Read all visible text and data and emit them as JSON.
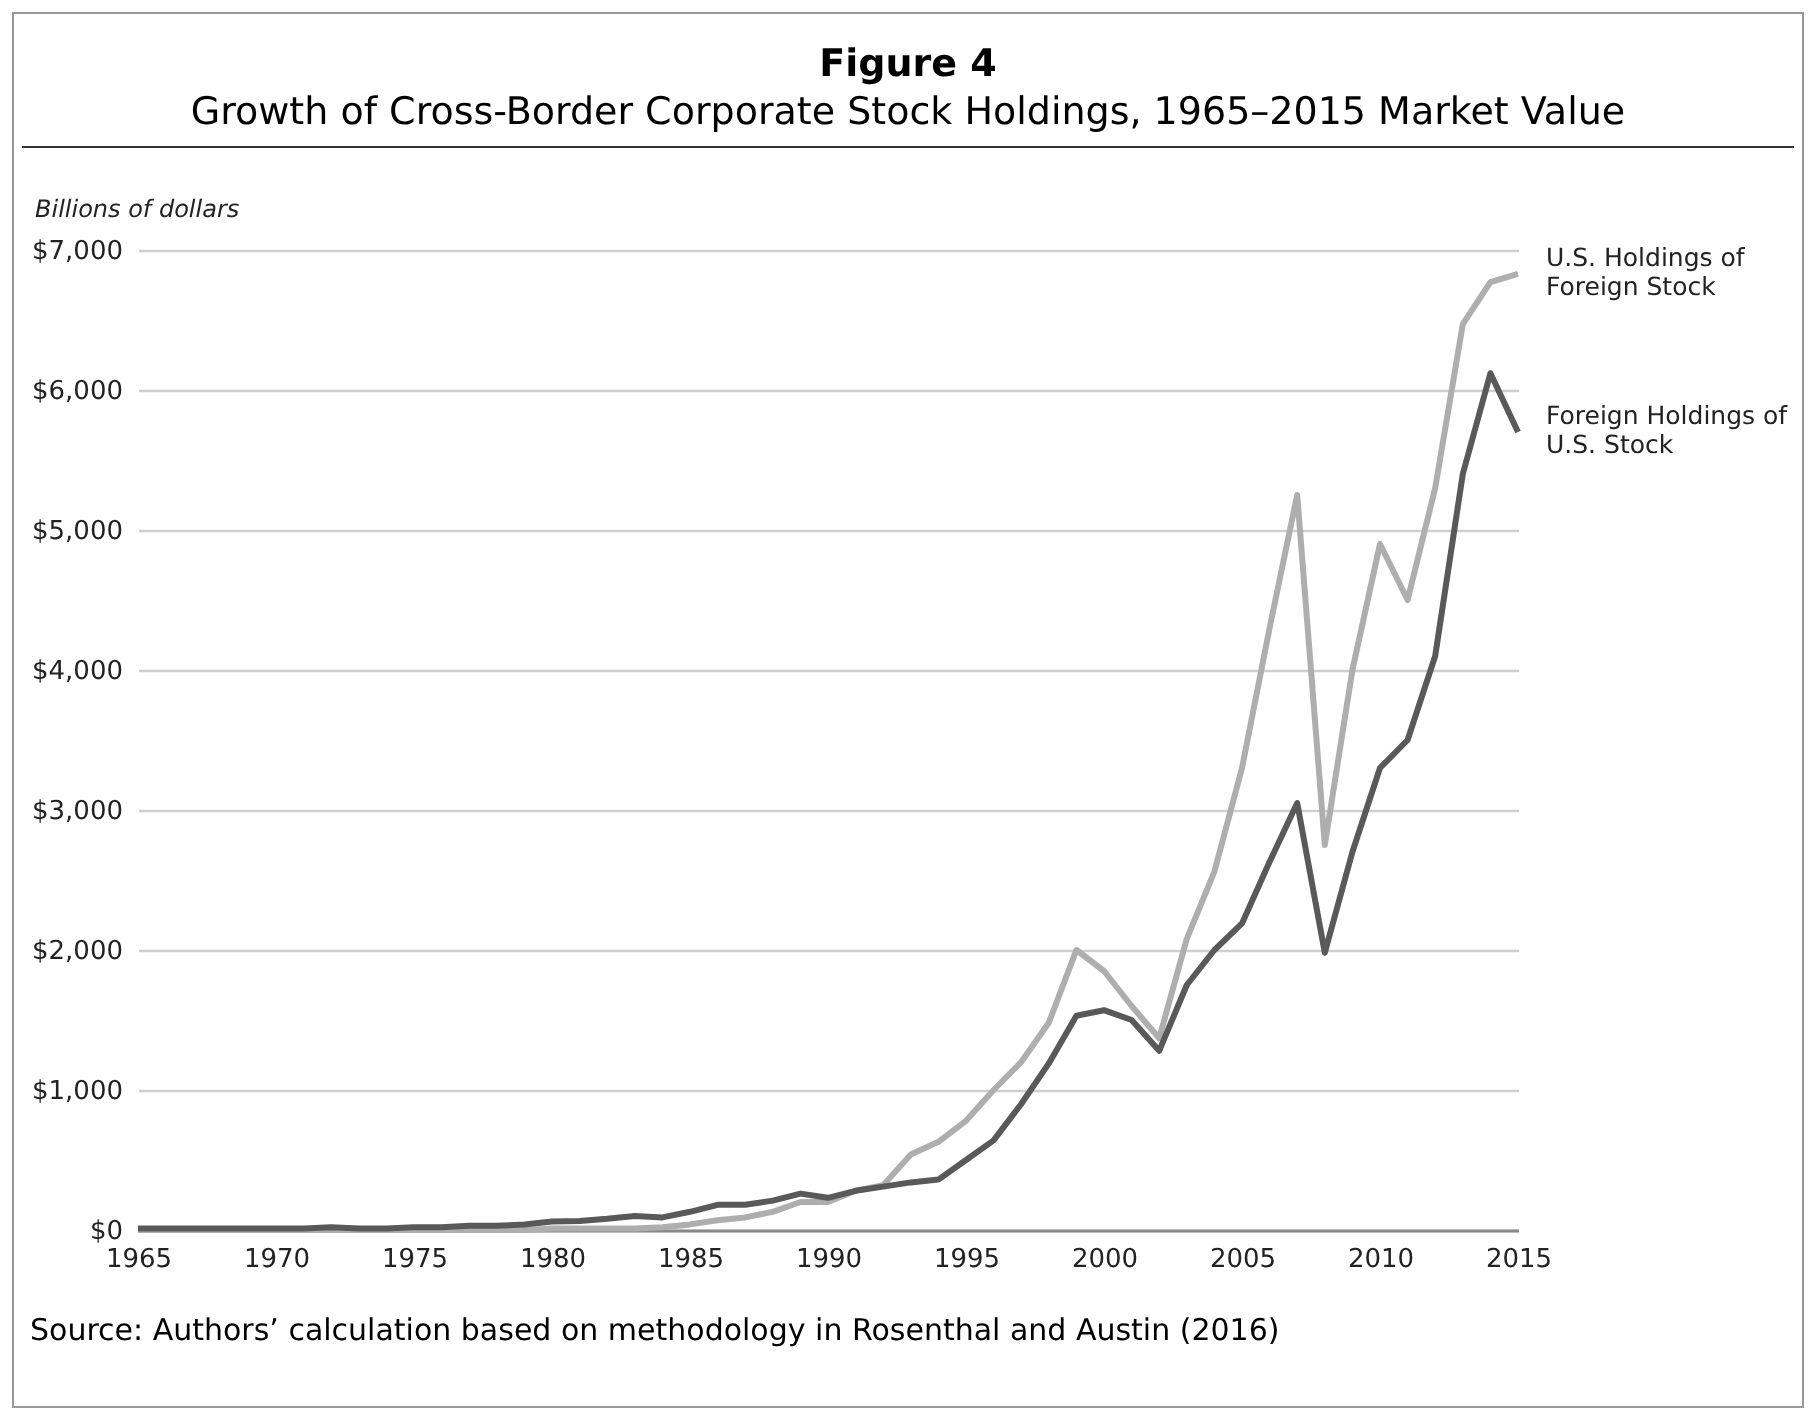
{
  "chart_data": {
    "type": "line",
    "title": "Figure 4",
    "subtitle": "Growth of Cross-Border Corporate Stock Holdings, 1965–2015 Market Value",
    "ylabel": "Billions of dollars",
    "annotations": [
      "Source: Authors’ calculation based on methodology in Rosenthal and Austin (2016)"
    ],
    "x": [
      1965,
      1966,
      1967,
      1968,
      1969,
      1970,
      1971,
      1972,
      1973,
      1974,
      1975,
      1976,
      1977,
      1978,
      1979,
      1980,
      1981,
      1982,
      1983,
      1984,
      1985,
      1986,
      1987,
      1988,
      1989,
      1990,
      1991,
      1992,
      1993,
      1994,
      1995,
      1996,
      1997,
      1998,
      1999,
      2000,
      2001,
      2002,
      2003,
      2004,
      2005,
      2006,
      2007,
      2008,
      2009,
      2010,
      2011,
      2012,
      2013,
      2014,
      2015
    ],
    "series": [
      {
        "name": "U.S. Holdings of Foreign Stock",
        "color": "#aeaeae",
        "values": [
          0,
          0,
          0,
          0,
          0,
          0,
          0,
          0,
          0,
          0,
          0,
          0,
          0,
          0,
          0,
          10,
          10,
          10,
          10,
          20,
          40,
          70,
          90,
          130,
          200,
          200,
          280,
          320,
          540,
          630,
          780,
          1000,
          1200,
          1480,
          2000,
          1850,
          1600,
          1370,
          2080,
          2560,
          3300,
          4300,
          5250,
          2750,
          4000,
          4900,
          4500,
          5300,
          6470,
          6770,
          6830
        ]
      },
      {
        "name": "Foreign Holdings of U.S. Stock",
        "color": "#595959",
        "values": [
          10,
          10,
          10,
          10,
          10,
          10,
          10,
          20,
          10,
          10,
          20,
          20,
          30,
          30,
          40,
          60,
          65,
          80,
          100,
          90,
          130,
          180,
          180,
          210,
          260,
          230,
          280,
          310,
          340,
          360,
          500,
          640,
          900,
          1190,
          1530,
          1570,
          1500,
          1280,
          1750,
          2000,
          2190,
          2630,
          3050,
          1980,
          2700,
          3300,
          3500,
          4100,
          5400,
          6120,
          5700
        ]
      }
    ],
    "xlim": [
      1965,
      2015
    ],
    "xticks": [
      1965,
      1970,
      1975,
      1980,
      1985,
      1990,
      1995,
      2000,
      2005,
      2010,
      2015
    ],
    "ylim": [
      0,
      7000
    ],
    "yticks": [
      {
        "value": 0,
        "label": "$0"
      },
      {
        "value": 1000,
        "label": "$1,000"
      },
      {
        "value": 2000,
        "label": "$2,000"
      },
      {
        "value": 3000,
        "label": "$3,000"
      },
      {
        "value": 4000,
        "label": "$4,000"
      },
      {
        "value": 5000,
        "label": "$5,000"
      },
      {
        "value": 6000,
        "label": "$6,000"
      },
      {
        "value": 7000,
        "label": "$7,000"
      }
    ],
    "grid": "y",
    "legend": false,
    "marker": "none",
    "line_style": "solid"
  }
}
